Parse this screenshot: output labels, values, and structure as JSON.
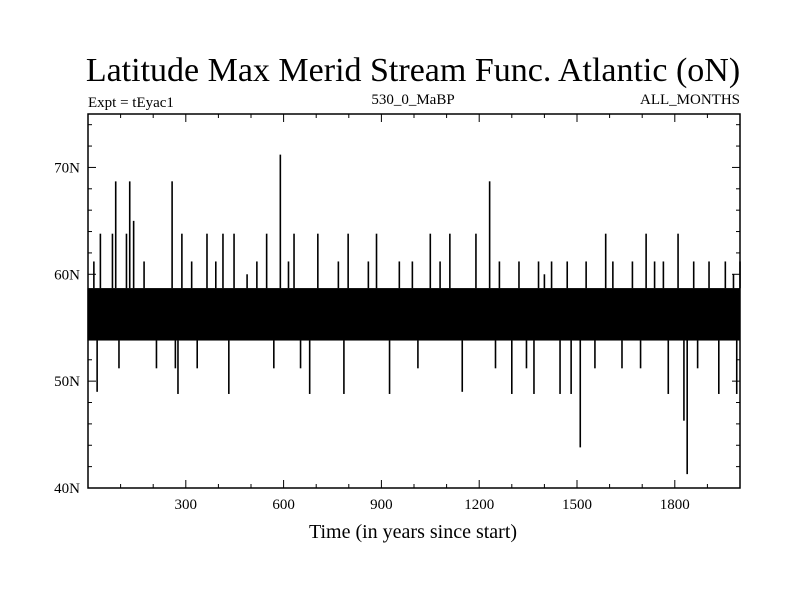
{
  "chart_data": {
    "type": "line",
    "title": "Latitude Max Merid Stream Func. Atlantic (oN)",
    "left_label": "Expt = tEyac1",
    "center_label": "530_0_MaBP",
    "right_label": "ALL_MONTHS",
    "xlabel": "Time (in years since start)",
    "ylabel": "",
    "xlim": [
      0,
      2000
    ],
    "ylim": [
      40,
      75
    ],
    "x_ticks": [
      {
        "value": 300,
        "label": "300"
      },
      {
        "value": 600,
        "label": "600"
      },
      {
        "value": 900,
        "label": "900"
      },
      {
        "value": 1200,
        "label": "1200"
      },
      {
        "value": 1500,
        "label": "1500"
      },
      {
        "value": 1800,
        "label": "1800"
      }
    ],
    "y_ticks": [
      {
        "value": 40,
        "label": "40N"
      },
      {
        "value": 50,
        "label": "50N"
      },
      {
        "value": 60,
        "label": "60N"
      },
      {
        "value": 70,
        "label": "70N"
      }
    ],
    "grid": false,
    "line_color": "#000000",
    "series": [
      {
        "base_low": 53.8,
        "base_high": 58.7,
        "spikes": [
          [
            18,
            61.2
          ],
          [
            28,
            49
          ],
          [
            38,
            63.8
          ],
          [
            75,
            63.8
          ],
          [
            85,
            68.7
          ],
          [
            95,
            51.2
          ],
          [
            118,
            63.8
          ],
          [
            128,
            68.7
          ],
          [
            140,
            65
          ],
          [
            172,
            61.2
          ],
          [
            210,
            51.2
          ],
          [
            258,
            68.7
          ],
          [
            268,
            51.2
          ],
          [
            276,
            48.8
          ],
          [
            288,
            63.8
          ],
          [
            318,
            61.2
          ],
          [
            335,
            51.2
          ],
          [
            365,
            63.8
          ],
          [
            392,
            61.2
          ],
          [
            414,
            63.8
          ],
          [
            432,
            48.8
          ],
          [
            448,
            63.8
          ],
          [
            488,
            60
          ],
          [
            518,
            61.2
          ],
          [
            548,
            63.8
          ],
          [
            570,
            51.2
          ],
          [
            590,
            71.2
          ],
          [
            615,
            61.2
          ],
          [
            632,
            63.8
          ],
          [
            652,
            51.2
          ],
          [
            680,
            48.8
          ],
          [
            705,
            63.8
          ],
          [
            768,
            61.2
          ],
          [
            785,
            48.8
          ],
          [
            798,
            63.8
          ],
          [
            860,
            61.2
          ],
          [
            885,
            63.8
          ],
          [
            925,
            48.8
          ],
          [
            955,
            61.2
          ],
          [
            995,
            61.2
          ],
          [
            1012,
            51.2
          ],
          [
            1050,
            63.8
          ],
          [
            1080,
            61.2
          ],
          [
            1110,
            63.8
          ],
          [
            1148,
            49
          ],
          [
            1190,
            63.8
          ],
          [
            1232,
            68.7
          ],
          [
            1250,
            51.2
          ],
          [
            1262,
            61.2
          ],
          [
            1300,
            48.8
          ],
          [
            1322,
            61.2
          ],
          [
            1345,
            51.2
          ],
          [
            1368,
            48.8
          ],
          [
            1382,
            61.2
          ],
          [
            1400,
            60
          ],
          [
            1422,
            61.2
          ],
          [
            1448,
            48.8
          ],
          [
            1470,
            61.2
          ],
          [
            1482,
            48.8
          ],
          [
            1510,
            43.8
          ],
          [
            1528,
            61.2
          ],
          [
            1555,
            51.2
          ],
          [
            1588,
            63.8
          ],
          [
            1610,
            61.2
          ],
          [
            1638,
            51.2
          ],
          [
            1670,
            61.2
          ],
          [
            1695,
            51.2
          ],
          [
            1712,
            63.8
          ],
          [
            1738,
            61.2
          ],
          [
            1765,
            61.2
          ],
          [
            1780,
            48.8
          ],
          [
            1810,
            63.8
          ],
          [
            1828,
            46.3
          ],
          [
            1838,
            41.3
          ],
          [
            1858,
            61.2
          ],
          [
            1870,
            51.2
          ],
          [
            1905,
            61.2
          ],
          [
            1935,
            48.8
          ],
          [
            1955,
            61.2
          ],
          [
            1980,
            60
          ],
          [
            1990,
            48.8
          ],
          [
            2000,
            61.2
          ]
        ]
      }
    ]
  }
}
